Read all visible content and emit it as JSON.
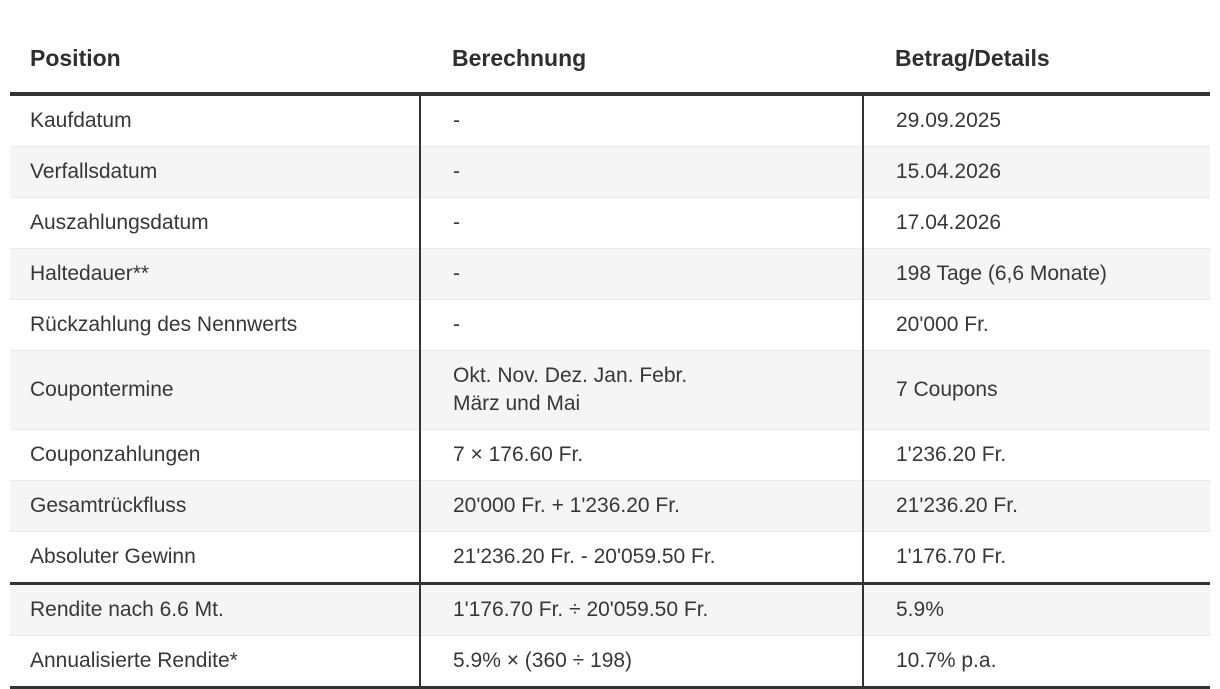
{
  "style": {
    "border_dark": "#333333",
    "row_stripe": "#f5f5f6",
    "text_color": "#373737"
  },
  "table": {
    "columns": [
      {
        "label": "Position"
      },
      {
        "label": "Berechnung"
      },
      {
        "label": "Betrag/Details"
      }
    ],
    "rows": [
      {
        "position": "Kaufdatum",
        "berechnung": "-",
        "betrag": "29.09.2025"
      },
      {
        "position": "Verfallsdatum",
        "berechnung": "-",
        "betrag": "15.04.2026"
      },
      {
        "position": "Auszahlungsdatum",
        "berechnung": "-",
        "betrag": "17.04.2026"
      },
      {
        "position": "Haltedauer**",
        "berechnung": "-",
        "betrag": "198 Tage (6,6 Monate)"
      },
      {
        "position": "Rückzahlung des Nennwerts",
        "berechnung": "-",
        "betrag": "20'000 Fr."
      },
      {
        "position": "Coupontermine",
        "berechnung": "Okt. Nov. Dez. Jan. Febr.\nMärz und Mai",
        "betrag": "7 Coupons"
      },
      {
        "position": "Couponzahlungen",
        "berechnung": "7 × 176.60 Fr.",
        "betrag": "1'236.20 Fr."
      },
      {
        "position": "Gesamtrückfluss",
        "berechnung": "20'000 Fr. + 1'236.20 Fr.",
        "betrag": "21'236.20 Fr."
      },
      {
        "position": "Absoluter Gewinn",
        "berechnung": "21'236.20 Fr. - 20'059.50 Fr.",
        "betrag": "1'176.70 Fr."
      },
      {
        "position": "Rendite nach 6.6 Mt.",
        "berechnung": "1'176.70 Fr. ÷ 20'059.50 Fr.",
        "betrag": "5.9%",
        "thick_top": true
      },
      {
        "position": "Annualisierte Rendite*",
        "berechnung": "5.9% × (360 ÷ 198)",
        "betrag": "10.7% p.a."
      }
    ]
  }
}
